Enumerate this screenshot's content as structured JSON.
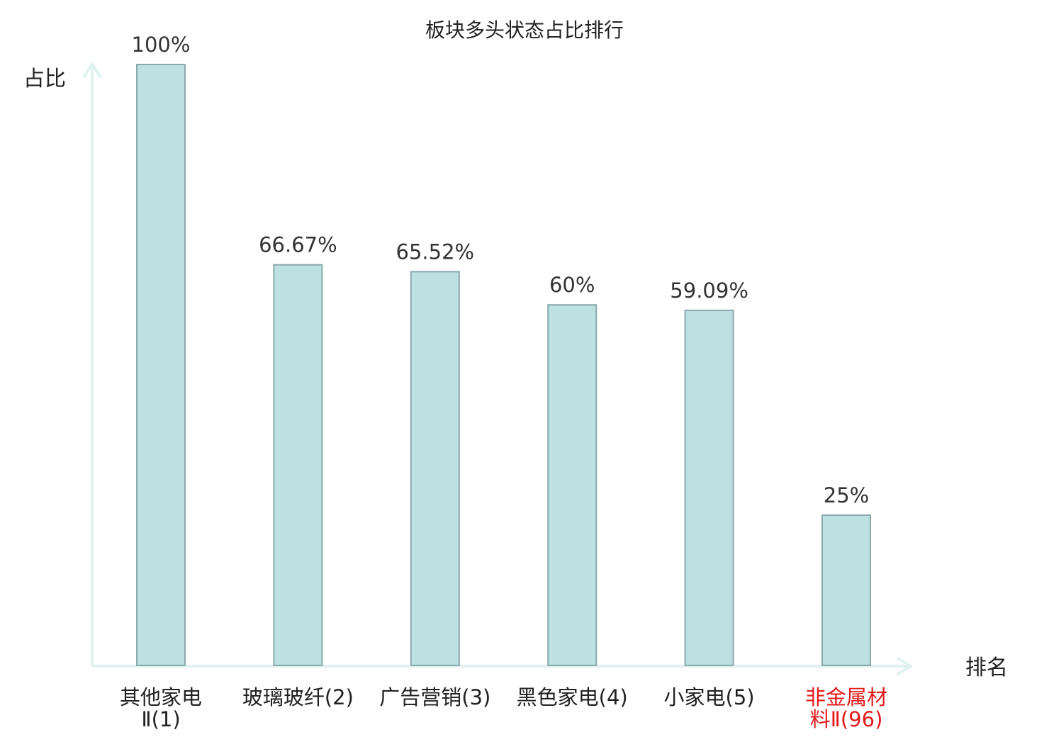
{
  "chart_data": {
    "type": "bar",
    "title": "板块多头状态占比排行",
    "ylabel": "占比",
    "xlabel": "排名",
    "ylim": [
      0,
      100
    ],
    "categories": [
      [
        "其他家电",
        "Ⅱ(1)"
      ],
      [
        "玻璃玻纤(2)"
      ],
      [
        "广告营销(3)"
      ],
      [
        "黑色家电(4)"
      ],
      [
        "小家电(5)"
      ],
      [
        "非金属材",
        "料Ⅱ(96)"
      ]
    ],
    "values": [
      100,
      66.67,
      65.52,
      60,
      59.09,
      25
    ],
    "value_labels": [
      "100%",
      "66.67%",
      "65.52%",
      "60%",
      "59.09%",
      "25%"
    ],
    "highlighted_category_index": 5,
    "grid": false,
    "legend": "none",
    "colors": {
      "bar_fill": "#bde0e2",
      "bar_stroke": "#8aa9ab",
      "axis": "#dff2f0",
      "text": "#222222",
      "value_label": "#333333",
      "highlight_text": "#e31a1c"
    }
  }
}
